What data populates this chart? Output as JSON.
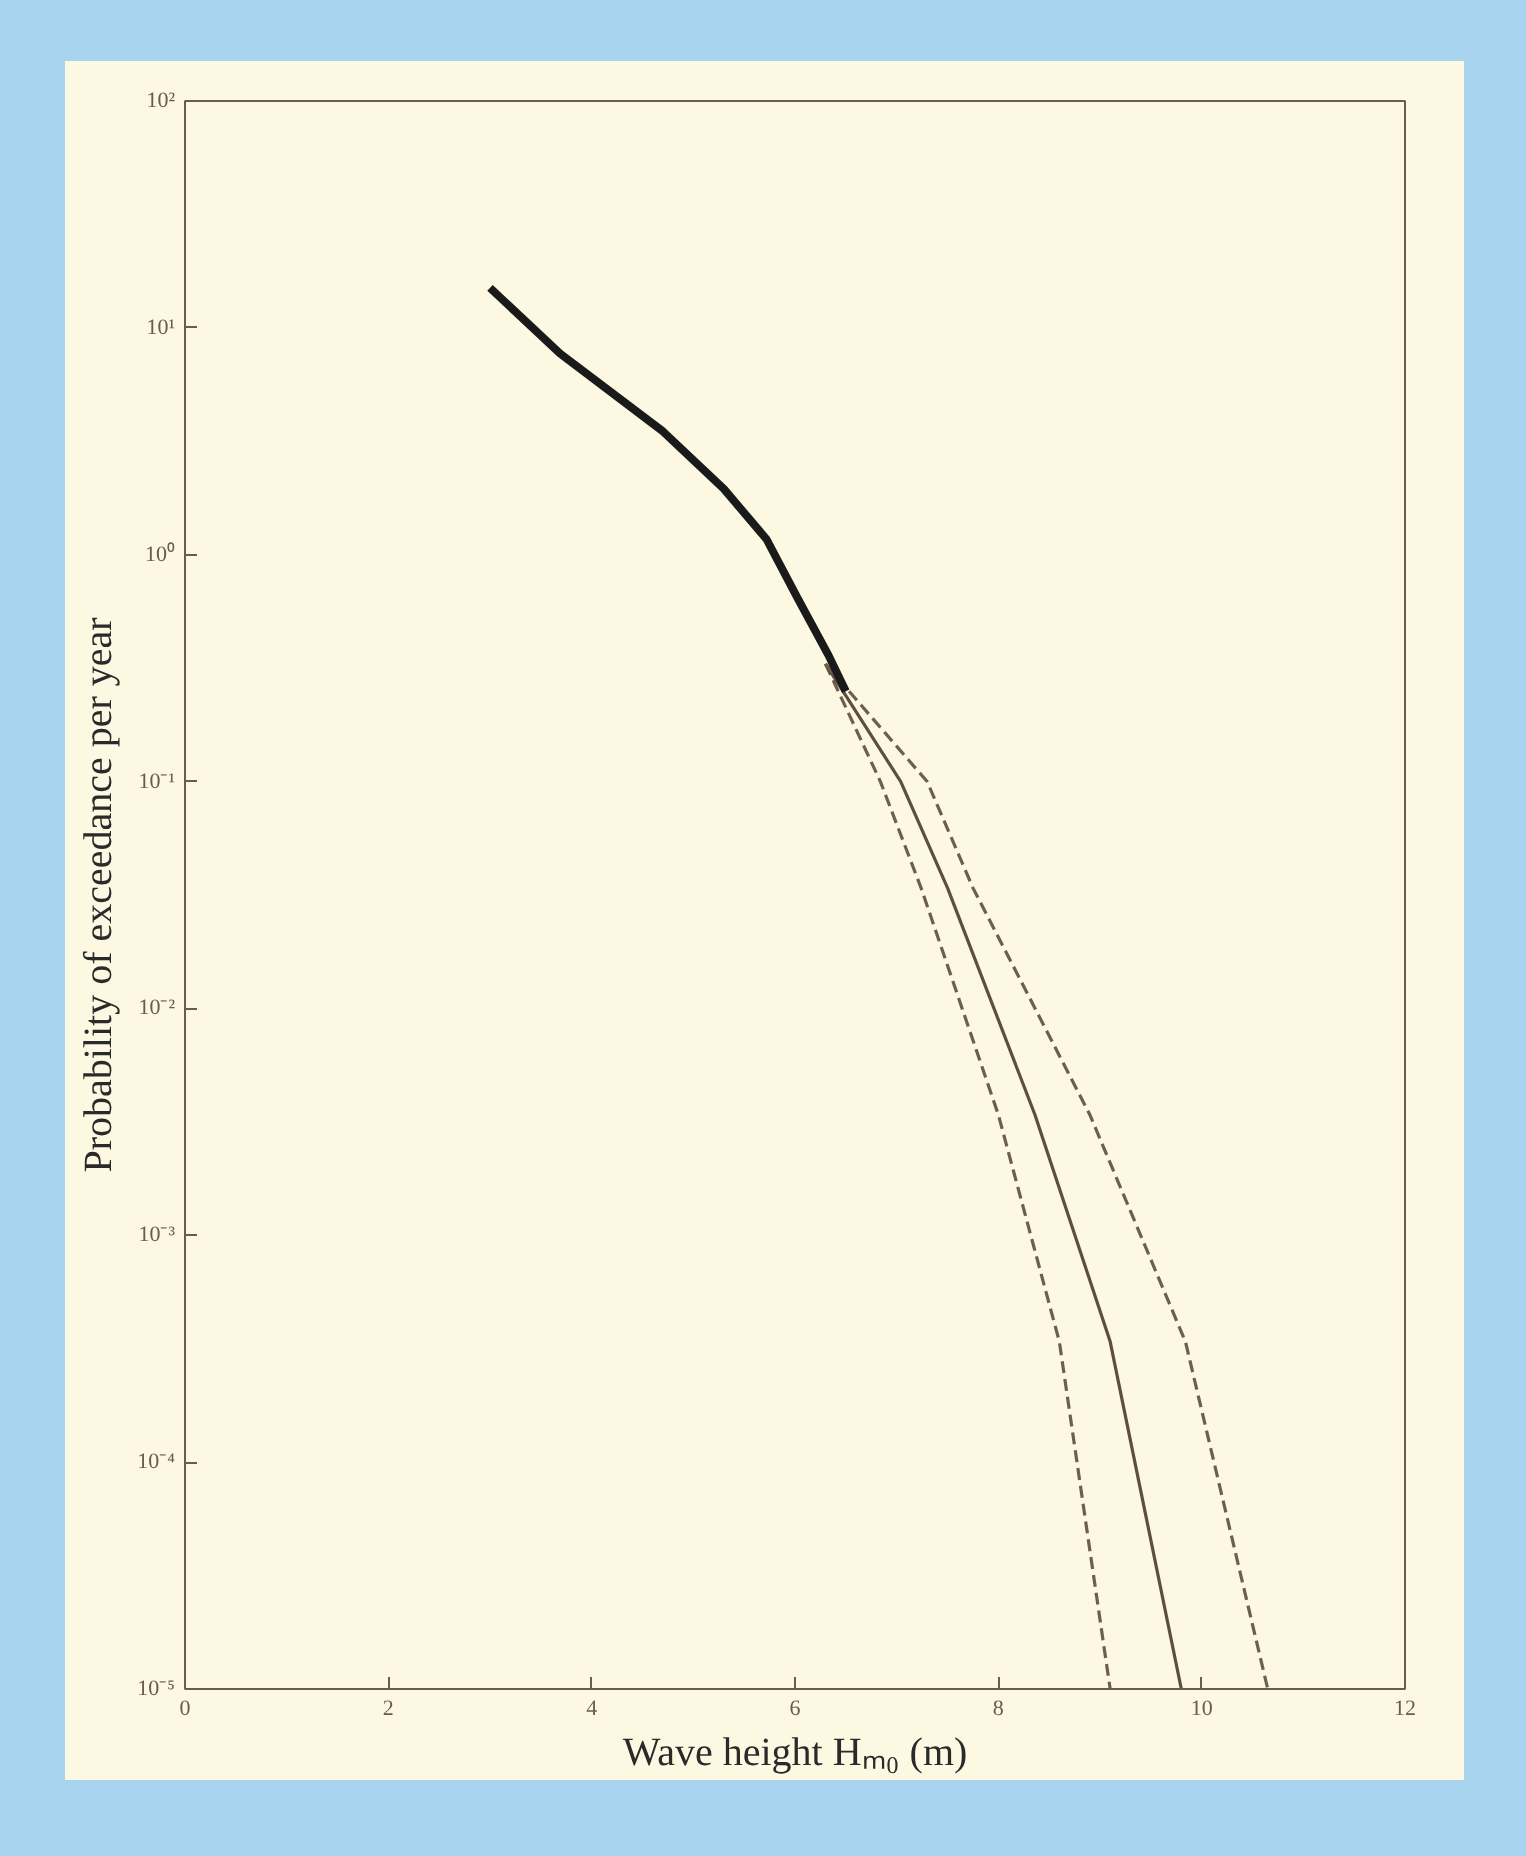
{
  "chart_data": {
    "type": "line",
    "xlabel": "Wave height Hₘ₀ (m)",
    "ylabel": "Probability of exceedance per year",
    "xlim": [
      0,
      12
    ],
    "xticks": [
      0,
      2,
      4,
      6,
      8,
      10,
      12
    ],
    "ylim": [
      1e-05,
      100
    ],
    "log": "y",
    "yticks": [
      {
        "value": 100,
        "label": "10²"
      },
      {
        "value": 10,
        "label": "10¹"
      },
      {
        "value": 1,
        "label": "10⁰"
      },
      {
        "value": 0.1,
        "label": "10⁻¹"
      },
      {
        "value": 0.01,
        "label": "10⁻²"
      },
      {
        "value": 0.001,
        "label": "10⁻³"
      },
      {
        "value": 0.0001,
        "label": "10⁻⁴"
      },
      {
        "value": 1e-05,
        "label": "10⁻⁵"
      }
    ],
    "grid": false,
    "series": [
      {
        "color": "#6e5e4e",
        "line_style": "dashed",
        "x": [
          6.3,
          6.84,
          7.24,
          8.0,
          8.6,
          9.1
        ],
        "values": [
          0.33,
          0.1,
          0.034,
          0.0034,
          0.00034,
          1e-05
        ]
      },
      {
        "color": "#5e4e3e",
        "line_style": "solid",
        "x": [
          6.3,
          7.04,
          7.5,
          8.36,
          9.1,
          9.8
        ],
        "values": [
          0.33,
          0.1,
          0.034,
          0.0034,
          0.00034,
          1e-05
        ]
      },
      {
        "color": "#6e5e4e",
        "line_style": "dashed",
        "x": [
          6.3,
          7.3,
          7.75,
          8.9,
          9.84,
          10.65
        ],
        "values": [
          0.33,
          0.1,
          0.034,
          0.0034,
          0.00034,
          1e-05
        ]
      },
      {
        "color": "#1a1a1a",
        "line_style": "solid",
        "x": [
          3.0,
          3.69,
          4.7,
          5.3,
          5.72,
          6.02,
          6.33,
          6.5
        ],
        "values": [
          15,
          7.7,
          3.5,
          1.95,
          1.17,
          0.65,
          0.36,
          0.25
        ]
      }
    ]
  }
}
